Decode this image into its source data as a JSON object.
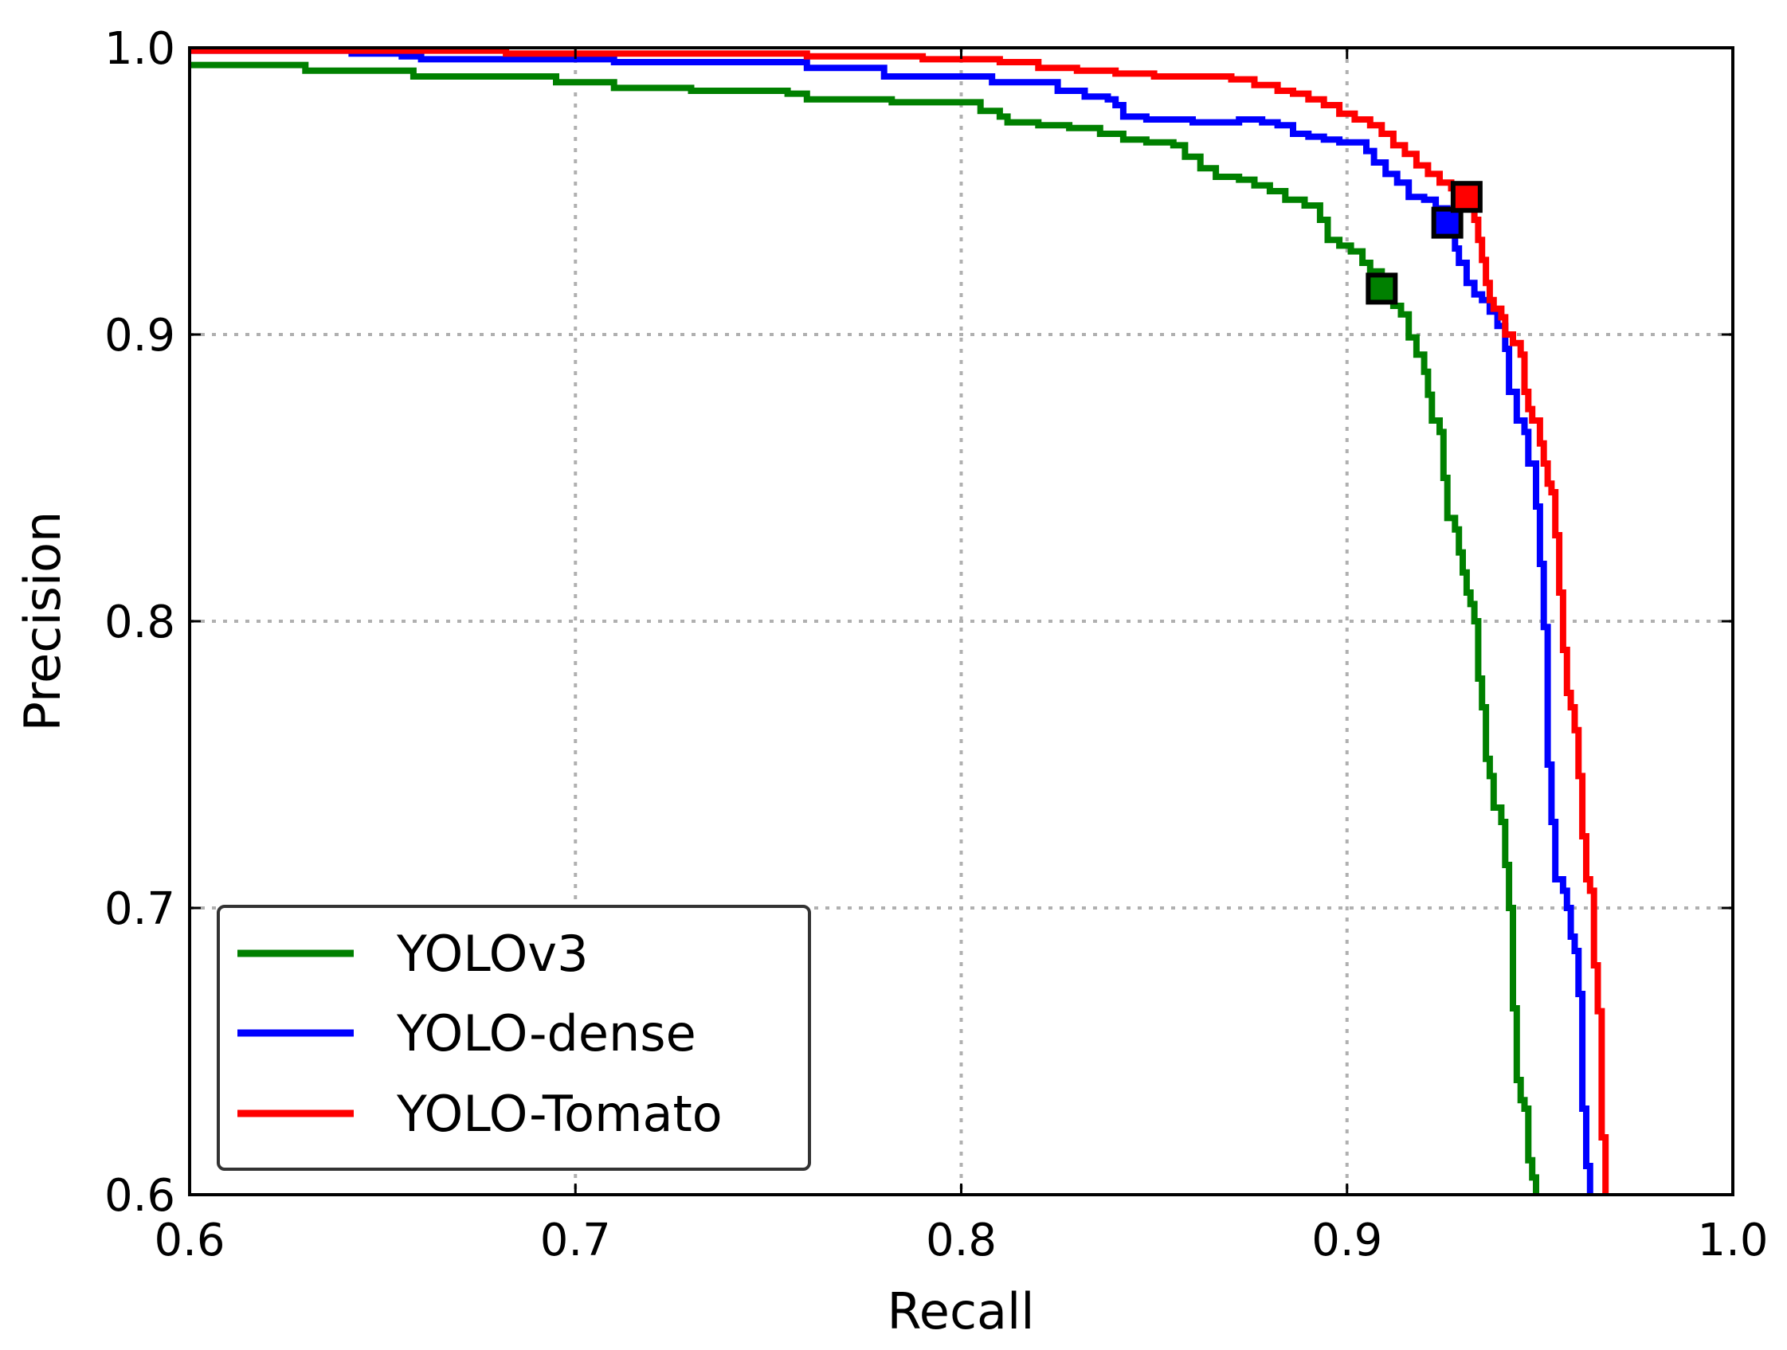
{
  "chart_data": {
    "type": "line",
    "title": "",
    "xlabel": "Recall",
    "ylabel": "Precision",
    "xlim": [
      0.6,
      1.0
    ],
    "ylim": [
      0.6,
      1.0
    ],
    "x_ticks": [
      0.6,
      0.7,
      0.8,
      0.9,
      1.0
    ],
    "x_tick_labels": [
      "0.6",
      "0.7",
      "0.8",
      "0.9",
      "1.0"
    ],
    "y_ticks": [
      0.6,
      0.7,
      0.8,
      0.9,
      1.0
    ],
    "y_tick_labels": [
      "0.6",
      "0.7",
      "0.8",
      "0.9",
      "1.0"
    ],
    "grid": true,
    "legend_position": "bottom-left",
    "series": [
      {
        "name": "YOLOv3",
        "color": "#008000",
        "marker_point": [
          0.909,
          0.916
        ],
        "points": [
          [
            0.6,
            0.994
          ],
          [
            0.628,
            0.994
          ],
          [
            0.63,
            0.992
          ],
          [
            0.655,
            0.992
          ],
          [
            0.658,
            0.99
          ],
          [
            0.69,
            0.99
          ],
          [
            0.695,
            0.988
          ],
          [
            0.71,
            0.986
          ],
          [
            0.728,
            0.986
          ],
          [
            0.73,
            0.985
          ],
          [
            0.755,
            0.984
          ],
          [
            0.76,
            0.982
          ],
          [
            0.78,
            0.982
          ],
          [
            0.782,
            0.981
          ],
          [
            0.798,
            0.981
          ],
          [
            0.805,
            0.978
          ],
          [
            0.81,
            0.976
          ],
          [
            0.812,
            0.974
          ],
          [
            0.82,
            0.973
          ],
          [
            0.828,
            0.972
          ],
          [
            0.836,
            0.97
          ],
          [
            0.842,
            0.968
          ],
          [
            0.848,
            0.967
          ],
          [
            0.855,
            0.966
          ],
          [
            0.858,
            0.962
          ],
          [
            0.862,
            0.958
          ],
          [
            0.866,
            0.955
          ],
          [
            0.872,
            0.954
          ],
          [
            0.876,
            0.952
          ],
          [
            0.88,
            0.95
          ],
          [
            0.884,
            0.947
          ],
          [
            0.889,
            0.945
          ],
          [
            0.893,
            0.94
          ],
          [
            0.895,
            0.933
          ],
          [
            0.898,
            0.931
          ],
          [
            0.901,
            0.929
          ],
          [
            0.904,
            0.925
          ],
          [
            0.906,
            0.922
          ],
          [
            0.909,
            0.916
          ],
          [
            0.912,
            0.91
          ],
          [
            0.914,
            0.907
          ],
          [
            0.916,
            0.899
          ],
          [
            0.918,
            0.893
          ],
          [
            0.92,
            0.887
          ],
          [
            0.921,
            0.879
          ],
          [
            0.922,
            0.87
          ],
          [
            0.924,
            0.866
          ],
          [
            0.925,
            0.85
          ],
          [
            0.926,
            0.836
          ],
          [
            0.928,
            0.832
          ],
          [
            0.929,
            0.824
          ],
          [
            0.93,
            0.817
          ],
          [
            0.931,
            0.81
          ],
          [
            0.932,
            0.806
          ],
          [
            0.933,
            0.8
          ],
          [
            0.934,
            0.78
          ],
          [
            0.935,
            0.77
          ],
          [
            0.936,
            0.752
          ],
          [
            0.937,
            0.746
          ],
          [
            0.938,
            0.735
          ],
          [
            0.94,
            0.73
          ],
          [
            0.941,
            0.715
          ],
          [
            0.942,
            0.7
          ],
          [
            0.943,
            0.665
          ],
          [
            0.944,
            0.64
          ],
          [
            0.945,
            0.633
          ],
          [
            0.946,
            0.63
          ],
          [
            0.947,
            0.612
          ],
          [
            0.948,
            0.606
          ],
          [
            0.949,
            0.6
          ]
        ]
      },
      {
        "name": "YOLO-dense",
        "color": "#0000ff",
        "marker_point": [
          0.926,
          0.939
        ],
        "points": [
          [
            0.6,
            0.999
          ],
          [
            0.64,
            0.999
          ],
          [
            0.642,
            0.998
          ],
          [
            0.655,
            0.997
          ],
          [
            0.66,
            0.996
          ],
          [
            0.705,
            0.996
          ],
          [
            0.71,
            0.995
          ],
          [
            0.755,
            0.995
          ],
          [
            0.76,
            0.993
          ],
          [
            0.778,
            0.993
          ],
          [
            0.78,
            0.99
          ],
          [
            0.805,
            0.99
          ],
          [
            0.808,
            0.988
          ],
          [
            0.82,
            0.988
          ],
          [
            0.825,
            0.985
          ],
          [
            0.832,
            0.983
          ],
          [
            0.838,
            0.982
          ],
          [
            0.84,
            0.98
          ],
          [
            0.842,
            0.976
          ],
          [
            0.848,
            0.975
          ],
          [
            0.855,
            0.975
          ],
          [
            0.86,
            0.974
          ],
          [
            0.865,
            0.974
          ],
          [
            0.872,
            0.975
          ],
          [
            0.878,
            0.974
          ],
          [
            0.882,
            0.973
          ],
          [
            0.886,
            0.97
          ],
          [
            0.89,
            0.969
          ],
          [
            0.894,
            0.968
          ],
          [
            0.898,
            0.967
          ],
          [
            0.903,
            0.967
          ],
          [
            0.905,
            0.964
          ],
          [
            0.907,
            0.96
          ],
          [
            0.91,
            0.956
          ],
          [
            0.913,
            0.953
          ],
          [
            0.916,
            0.948
          ],
          [
            0.92,
            0.947
          ],
          [
            0.923,
            0.944
          ],
          [
            0.926,
            0.939
          ],
          [
            0.928,
            0.93
          ],
          [
            0.929,
            0.925
          ],
          [
            0.931,
            0.918
          ],
          [
            0.933,
            0.914
          ],
          [
            0.935,
            0.912
          ],
          [
            0.937,
            0.908
          ],
          [
            0.939,
            0.903
          ],
          [
            0.941,
            0.895
          ],
          [
            0.942,
            0.88
          ],
          [
            0.944,
            0.87
          ],
          [
            0.946,
            0.866
          ],
          [
            0.947,
            0.855
          ],
          [
            0.949,
            0.84
          ],
          [
            0.95,
            0.82
          ],
          [
            0.951,
            0.798
          ],
          [
            0.952,
            0.75
          ],
          [
            0.953,
            0.73
          ],
          [
            0.954,
            0.71
          ],
          [
            0.956,
            0.706
          ],
          [
            0.957,
            0.7
          ],
          [
            0.958,
            0.69
          ],
          [
            0.959,
            0.685
          ],
          [
            0.96,
            0.67
          ],
          [
            0.961,
            0.63
          ],
          [
            0.962,
            0.61
          ],
          [
            0.963,
            0.6
          ]
        ]
      },
      {
        "name": "YOLO-Tomato",
        "color": "#ff0000",
        "marker_point": [
          0.931,
          0.948
        ],
        "points": [
          [
            0.6,
            0.999
          ],
          [
            0.68,
            0.999
          ],
          [
            0.682,
            0.998
          ],
          [
            0.755,
            0.998
          ],
          [
            0.76,
            0.997
          ],
          [
            0.79,
            0.996
          ],
          [
            0.81,
            0.995
          ],
          [
            0.82,
            0.993
          ],
          [
            0.83,
            0.992
          ],
          [
            0.84,
            0.991
          ],
          [
            0.85,
            0.99
          ],
          [
            0.87,
            0.989
          ],
          [
            0.876,
            0.987
          ],
          [
            0.882,
            0.985
          ],
          [
            0.886,
            0.984
          ],
          [
            0.89,
            0.982
          ],
          [
            0.894,
            0.98
          ],
          [
            0.898,
            0.977
          ],
          [
            0.902,
            0.975
          ],
          [
            0.906,
            0.973
          ],
          [
            0.909,
            0.97
          ],
          [
            0.912,
            0.966
          ],
          [
            0.915,
            0.963
          ],
          [
            0.918,
            0.959
          ],
          [
            0.921,
            0.956
          ],
          [
            0.924,
            0.953
          ],
          [
            0.927,
            0.951
          ],
          [
            0.931,
            0.948
          ],
          [
            0.933,
            0.94
          ],
          [
            0.934,
            0.933
          ],
          [
            0.935,
            0.926
          ],
          [
            0.936,
            0.918
          ],
          [
            0.937,
            0.912
          ],
          [
            0.938,
            0.909
          ],
          [
            0.94,
            0.906
          ],
          [
            0.941,
            0.9
          ],
          [
            0.943,
            0.897
          ],
          [
            0.945,
            0.893
          ],
          [
            0.946,
            0.88
          ],
          [
            0.947,
            0.874
          ],
          [
            0.948,
            0.87
          ],
          [
            0.95,
            0.862
          ],
          [
            0.951,
            0.855
          ],
          [
            0.952,
            0.848
          ],
          [
            0.953,
            0.845
          ],
          [
            0.954,
            0.83
          ],
          [
            0.955,
            0.81
          ],
          [
            0.956,
            0.79
          ],
          [
            0.957,
            0.775
          ],
          [
            0.958,
            0.77
          ],
          [
            0.959,
            0.762
          ],
          [
            0.96,
            0.746
          ],
          [
            0.961,
            0.725
          ],
          [
            0.962,
            0.71
          ],
          [
            0.963,
            0.706
          ],
          [
            0.964,
            0.68
          ],
          [
            0.965,
            0.664
          ],
          [
            0.966,
            0.62
          ],
          [
            0.967,
            0.6
          ]
        ]
      }
    ]
  }
}
